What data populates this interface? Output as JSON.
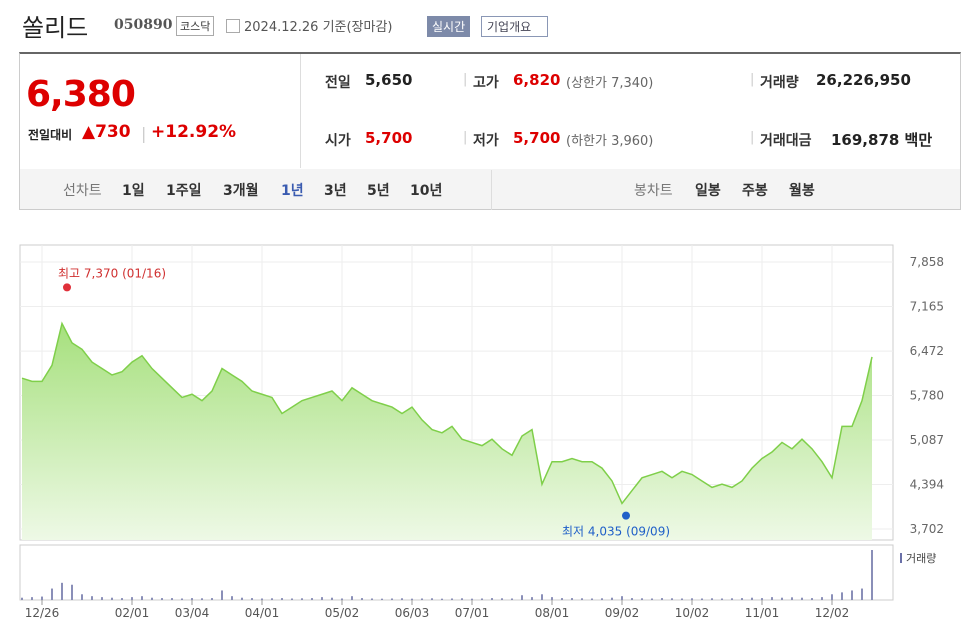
{
  "header": {
    "title": "쏠리드",
    "code": "050890",
    "market": "코스닥",
    "date": "2024.12.26 기준(장마감)",
    "realtime": "실시간",
    "profile": "기업개요"
  },
  "quote": {
    "price": "6,380",
    "change_label": "전일대비",
    "change": "▲730",
    "rate": "+12.92%",
    "cells": [
      {
        "label": "전일",
        "value": "5,650"
      },
      {
        "label": "고가",
        "value": "6,820",
        "extra": "(상한가 7,340)"
      },
      {
        "label": "거래량",
        "value": "26,226,950"
      },
      {
        "label": "시가",
        "value": "5,700"
      },
      {
        "label": "저가",
        "value": "5,700",
        "extra": "(하한가 3,960)"
      },
      {
        "label": "거래대금",
        "value": "169,878 백만"
      }
    ]
  },
  "tabs": {
    "line_label": "선차트",
    "line": [
      "1일",
      "1주일",
      "3개월",
      "1년",
      "3년",
      "5년",
      "10년"
    ],
    "selected": "1년",
    "candle_label": "봉차트",
    "candle": [
      "일봉",
      "주봉",
      "월봉"
    ]
  },
  "chart": {
    "type": "area",
    "color": "#7fcf4a",
    "categories": [
      null,
      null,
      "12/26",
      null,
      null,
      null,
      null,
      null,
      null,
      null,
      null,
      "02/01",
      null,
      null,
      null,
      null,
      null,
      "03/04",
      null,
      null,
      null,
      null,
      null,
      null,
      "04/01",
      null,
      null,
      null,
      null,
      null,
      null,
      null,
      "05/02",
      null,
      null,
      null,
      null,
      null,
      null,
      "06/03",
      null,
      null,
      null,
      null,
      null,
      "07/01",
      null,
      null,
      null,
      null,
      null,
      null,
      null,
      "08/01",
      null,
      null,
      null,
      null,
      null,
      null,
      "09/02",
      null,
      null,
      null,
      null,
      null,
      null,
      "10/02",
      null,
      null,
      null,
      null,
      null,
      null,
      "11/01",
      null,
      null,
      null,
      null,
      null,
      null,
      "12/02",
      null,
      null,
      null,
      null
    ],
    "values": [
      6050,
      6000,
      6000,
      6250,
      6900,
      6600,
      6500,
      6300,
      6200,
      6100,
      6150,
      6300,
      6400,
      6200,
      6050,
      5900,
      5750,
      5800,
      5700,
      5850,
      6200,
      6100,
      6000,
      5850,
      5800,
      5750,
      5500,
      5600,
      5700,
      5750,
      5800,
      5850,
      5700,
      5900,
      5800,
      5700,
      5650,
      5600,
      5500,
      5600,
      5400,
      5250,
      5200,
      5300,
      5100,
      5050,
      5000,
      5100,
      4950,
      4850,
      5150,
      5250,
      4400,
      4750,
      4750,
      4800,
      4750,
      4750,
      4650,
      4450,
      4100,
      4300,
      4500,
      4550,
      4600,
      4500,
      4600,
      4550,
      4450,
      4350,
      4400,
      4350,
      4450,
      4650,
      4800,
      4900,
      5050,
      4950,
      5100,
      4950,
      4750,
      4500,
      5300,
      5300,
      5700,
      6380
    ],
    "volume_label": "거래량",
    "volume": [
      1.2,
      1.5,
      1.8,
      6,
      9,
      8,
      3,
      2,
      1.5,
      1.2,
      1,
      1.5,
      2,
      1.2,
      1,
      1,
      0.8,
      1,
      0.9,
      1,
      5,
      2,
      1.2,
      1,
      0.8,
      0.9,
      1,
      0.8,
      0.9,
      1,
      1.5,
      1.2,
      0.8,
      2,
      1,
      0.8,
      0.7,
      0.8,
      0.9,
      0.7,
      0.8,
      0.9,
      0.7,
      0.8,
      0.9,
      0.7,
      0.8,
      1,
      0.9,
      0.8,
      2.5,
      1.5,
      3,
      1.5,
      1,
      1,
      0.9,
      0.8,
      0.9,
      1.2,
      2,
      1,
      0.9,
      0.8,
      1,
      0.9,
      0.8,
      0.9,
      0.8,
      0.9,
      0.8,
      0.9,
      1,
      1.2,
      1,
      1.5,
      1.2,
      1.4,
      1.2,
      1,
      1.5,
      3,
      4,
      5,
      6,
      26.2
    ],
    "ylim": [
      3531,
      8123
    ],
    "yticks": [
      {
        "value": 3702,
        "label": "3,702"
      },
      {
        "value": 4394,
        "label": "4,394"
      },
      {
        "value": 5087,
        "label": "5,087"
      },
      {
        "value": 5780,
        "label": "5,780"
      },
      {
        "value": 6472,
        "label": "6,472"
      },
      {
        "value": 7165,
        "label": "7,165"
      },
      {
        "value": 7858,
        "label": "7,858"
      }
    ],
    "high": {
      "value": 7370,
      "label": "최고 7,370 (01/16)"
    },
    "low": {
      "value": 4035,
      "label": "최저 4,035 (09/09)"
    }
  }
}
